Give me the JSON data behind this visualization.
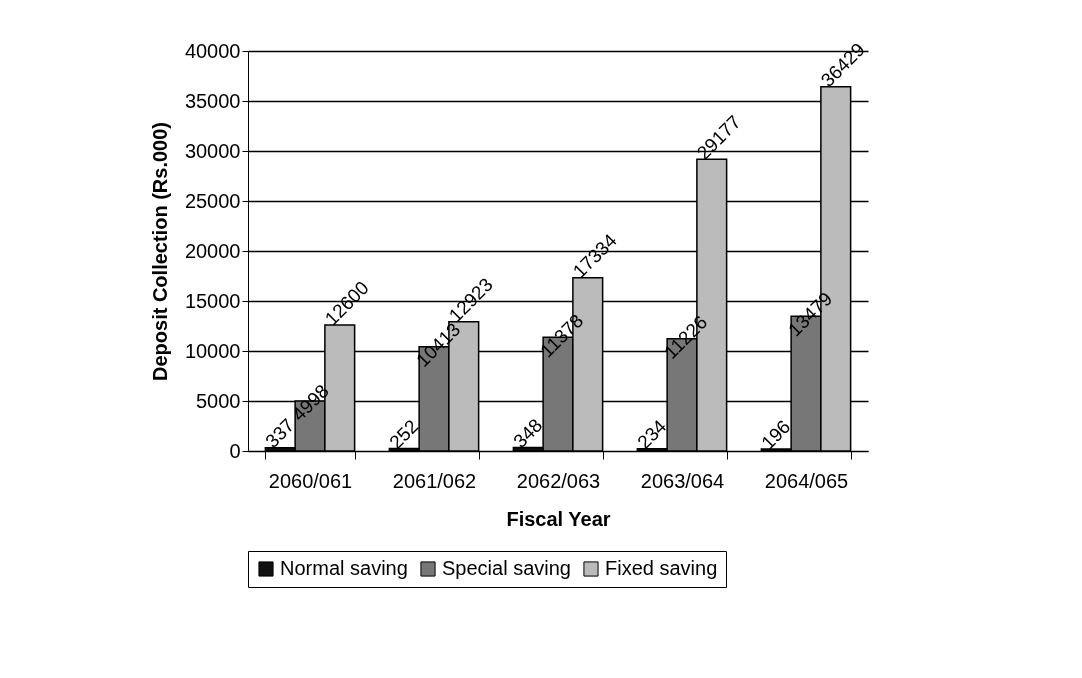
{
  "chart_data": {
    "type": "bar",
    "xlabel": "Fiscal Year",
    "ylabel": "Deposit Collection (Rs.000)",
    "categories": [
      "2060/061",
      "2061/062",
      "2062/063",
      "2063/064",
      "2064/065"
    ],
    "series": [
      {
        "name": "Normal saving",
        "color": "#111111",
        "values": [
          337,
          252,
          348,
          234,
          196
        ]
      },
      {
        "name": "Special saving",
        "color": "#777777",
        "values": [
          4998,
          10413,
          11378,
          11226,
          13479
        ]
      },
      {
        "name": "Fixed saving",
        "color": "#bbbbbb",
        "values": [
          12600,
          12923,
          17334,
          29177,
          36429
        ]
      }
    ],
    "ylim": [
      0,
      40000
    ],
    "yticks": [
      0,
      5000,
      10000,
      15000,
      20000,
      25000,
      30000,
      35000,
      40000
    ],
    "grid": "y",
    "legend": "bottom",
    "data_labels": true
  }
}
